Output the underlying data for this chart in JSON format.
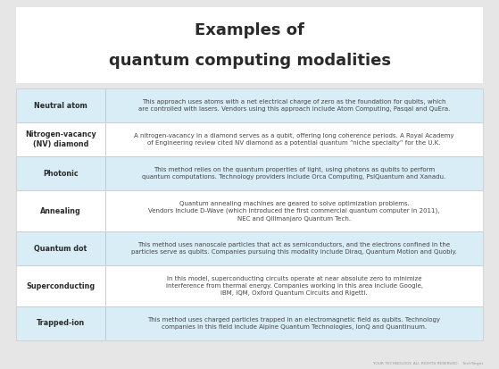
{
  "title_line1": "Examples of",
  "title_line2": "quantum computing modalities",
  "title_fontsize": 13,
  "bg_color": "#e6e6e6",
  "card_bg": "#ffffff",
  "row_colors": [
    "#d9edf7",
    "#ffffff",
    "#d9edf7",
    "#ffffff",
    "#d9edf7",
    "#ffffff",
    "#d9edf7"
  ],
  "label_color": "#2a2a2a",
  "text_color": "#444444",
  "footer_text": "YOUR TECHNOLOGY. ALL RIGHTS RESERVED.   TechTarget",
  "rows": [
    {
      "label": "Neutral atom",
      "text": "This approach uses atoms with a net electrical charge of zero as the foundation for qubits, which\nare controlled with lasers. Vendors using this approach include Atom Computing, Pasqal and QuEra."
    },
    {
      "label": "Nitrogen-vacancy\n(NV) diamond",
      "text": "A nitrogen-vacancy in a diamond serves as a qubit, offering long coherence periods. A Royal Academy\nof Engineering review cited NV diamond as a potential quantum “niche specialty” for the U.K."
    },
    {
      "label": "Photonic",
      "text": "This method relies on the quantum properties of light, using photons as qubits to perform\nquantum computations. Technology providers include Orca Computing, PsiQuantum and Xanadu."
    },
    {
      "label": "Annealing",
      "text": "Quantum annealing machines are geared to solve optimization problems.\nVendors include D-Wave (which introduced the first commercial quantum computer in 2011),\nNEC and Qilimanjaro Quantum Tech."
    },
    {
      "label": "Quantum dot",
      "text": "This method uses nanoscale particles that act as semiconductors, and the electrons confined in the\nparticles serve as qubits. Companies pursuing this modality include Diraq, Quantum Motion and Quobly."
    },
    {
      "label": "Superconducting",
      "text": "In this model, superconducting circuits operate at near absolute zero to minimize\ninterference from thermal energy. Companies working in this area include Google,\nIBM, IQM, Oxford Quantum Circuits and Rigetti."
    },
    {
      "label": "Trapped-ion",
      "text": "This method uses charged particles trapped in an electromagnetic field as qubits. Technology\ncompanies in this field include Alpine Quantum Technologies, IonQ and Quantinuum."
    }
  ]
}
